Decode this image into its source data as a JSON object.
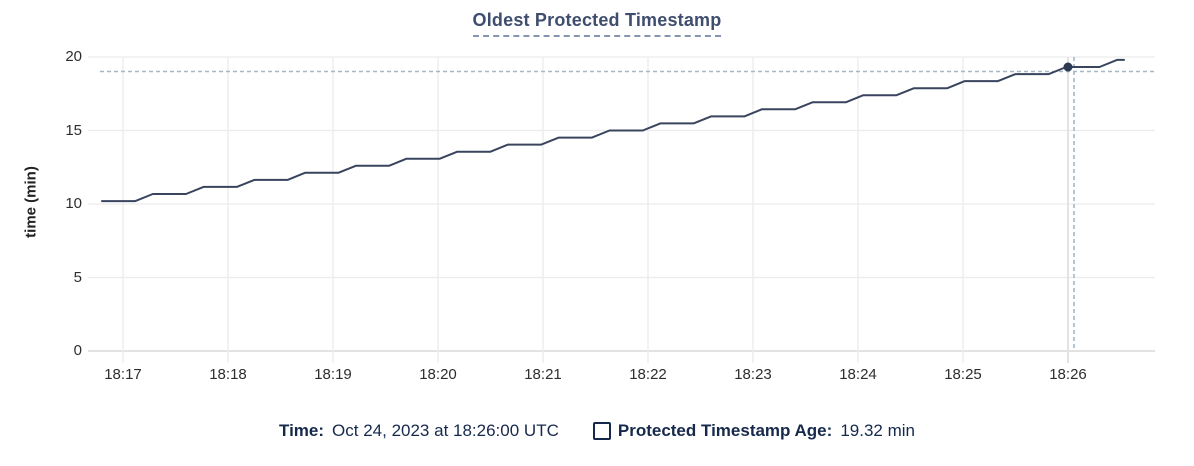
{
  "chart_data": {
    "type": "line",
    "title": "Oldest Protected Timestamp",
    "xlabel": "",
    "ylabel": "time (min)",
    "y_ticks": [
      0,
      5,
      10,
      15,
      20
    ],
    "ylim": [
      0,
      20
    ],
    "x_ticks": [
      "18:17",
      "18:18",
      "18:19",
      "18:20",
      "18:21",
      "18:22",
      "18:23",
      "18:24",
      "18:25",
      "18:26"
    ],
    "x_tick_interval_seconds": 60,
    "x_unit": "seconds after 18:17:00",
    "grid": true,
    "legend_position": "bottom-center",
    "series": [
      {
        "name": "Protected Timestamp Age",
        "points": [
          [
            -12,
            10.2
          ],
          [
            7,
            10.2
          ],
          [
            17,
            10.68
          ],
          [
            36,
            10.68
          ],
          [
            46,
            11.16
          ],
          [
            65,
            11.16
          ],
          [
            75,
            11.64
          ],
          [
            94,
            11.64
          ],
          [
            104,
            12.12
          ],
          [
            123,
            12.12
          ],
          [
            133,
            12.6
          ],
          [
            152,
            12.6
          ],
          [
            162,
            13.08
          ],
          [
            181,
            13.08
          ],
          [
            191,
            13.56
          ],
          [
            210,
            13.56
          ],
          [
            220,
            14.04
          ],
          [
            239,
            14.04
          ],
          [
            249,
            14.52
          ],
          [
            268,
            14.52
          ],
          [
            278,
            15.0
          ],
          [
            297,
            15.0
          ],
          [
            307,
            15.48
          ],
          [
            326,
            15.48
          ],
          [
            336,
            15.96
          ],
          [
            355,
            15.96
          ],
          [
            365,
            16.44
          ],
          [
            384,
            16.44
          ],
          [
            394,
            16.92
          ],
          [
            413,
            16.92
          ],
          [
            423,
            17.4
          ],
          [
            442,
            17.4
          ],
          [
            452,
            17.88
          ],
          [
            471,
            17.88
          ],
          [
            481,
            18.36
          ],
          [
            500,
            18.36
          ],
          [
            510,
            18.84
          ],
          [
            529,
            18.84
          ],
          [
            539,
            19.32
          ],
          [
            558,
            19.32
          ],
          [
            568,
            19.8
          ],
          [
            572,
            19.8
          ]
        ]
      }
    ],
    "hover_point": {
      "x_seconds": 540,
      "x_label": "18:26",
      "value_min": 19.32
    },
    "colors": {
      "line": "#39455e",
      "point": "#2c3a52",
      "crosshair": "#a4b8c6",
      "grid": "#ececec",
      "axis": "#d9d9d9",
      "hover_column": "#e3e3e3",
      "title": "#3f4e6e",
      "title_underline": "#8495af",
      "tick_text": "#2d2d2d",
      "legend_text": "#16294c"
    }
  },
  "legend": {
    "time_label": "Time:",
    "time_value": "Oct 24, 2023 at 18:26:00 UTC",
    "age_label": "Protected Timestamp Age:",
    "age_value": "19.32 min"
  }
}
